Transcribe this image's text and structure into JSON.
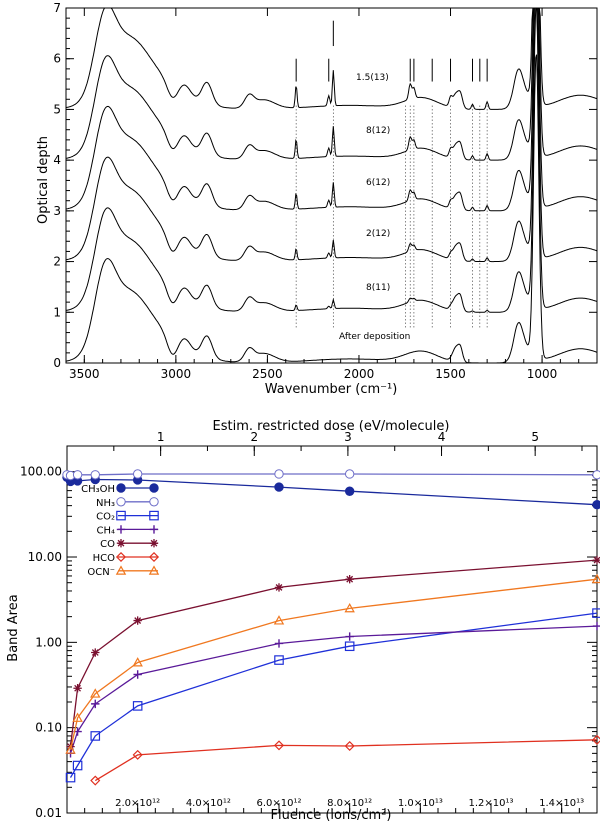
{
  "top_panel": {
    "xlabel": "Wavenumber (cm⁻¹)",
    "ylabel": "Optical depth",
    "xticks": [
      "3500",
      "3000",
      "2500",
      "2000",
      "1500",
      "1000"
    ],
    "yticks": [
      "0",
      "1",
      "2",
      "3",
      "4",
      "5",
      "6",
      "7"
    ],
    "spectra_labels": [
      "1.5(13)",
      "8(12)",
      "6(12)",
      "2(12)",
      "8(11)",
      "After deposition"
    ]
  },
  "bottom_panel": {
    "xlabel": "Fluence (ions/cm²)",
    "ylabel": "Band Area",
    "top_axis_label": "Estim. restricted dose (eV/molecule)",
    "top_ticks": [
      "1",
      "2",
      "3",
      "4",
      "5"
    ],
    "yticks": [
      "100.00",
      "10.00",
      "1.00",
      "0.10",
      "0.01"
    ],
    "xticks": [
      "2.0×10¹²",
      "4.0×10¹²",
      "6.0×10¹²",
      "8.0×10¹²",
      "1.0×10¹³",
      "1.2×10¹³",
      "1.4×10¹³"
    ],
    "legend": [
      "CH₃OH",
      "NH₃",
      "CO₂",
      "CH₄",
      "CO",
      "HCO",
      "OCN⁻"
    ]
  },
  "chart_data": [
    {
      "type": "line",
      "title": "",
      "xlabel": "Wavenumber (cm⁻¹)",
      "ylabel": "Optical depth",
      "xlim": [
        3600,
        700
      ],
      "ylim": [
        0,
        7
      ],
      "series_offsets": [
        {
          "name": "After deposition",
          "offset": 0.0
        },
        {
          "name": "8(11)",
          "offset": 1.0
        },
        {
          "name": "2(12)",
          "offset": 2.0
        },
        {
          "name": "6(12)",
          "offset": 3.0
        },
        {
          "name": "8(12)",
          "offset": 4.0
        },
        {
          "name": "1.5(13)",
          "offset": 5.0
        }
      ],
      "features_cm1": [
        3390,
        3260,
        3030,
        2950,
        2830,
        2600,
        2343,
        2140,
        1850,
        1720,
        1650,
        1470,
        1440,
        1130,
        1030,
        790
      ],
      "marked_lines_cm1": [
        2343,
        2165,
        2140,
        1720,
        1700,
        1600,
        1500,
        1380,
        1340,
        1300
      ],
      "dotted_lines_cm1": [
        2343,
        2140,
        1745,
        1720,
        1700,
        1600,
        1500,
        1380,
        1340,
        1300
      ]
    },
    {
      "type": "scatter",
      "title": "",
      "xlabel": "Fluence (ions/cm²)",
      "ylabel": "Band Area",
      "yscale": "log",
      "xlim": [
        0,
        15000000000000.0
      ],
      "ylim": [
        0.01,
        200
      ],
      "top_axis": {
        "label": "Estim. restricted dose (eV/molecule)",
        "ticks": [
          1,
          2,
          3,
          4,
          5
        ]
      },
      "x": [
        0,
        100000000000.0,
        300000000000.0,
        800000000000.0,
        2000000000000.0,
        6000000000000.0,
        8000000000000.0,
        15000000000000.0
      ],
      "series": [
        {
          "name": "CH₃OH",
          "color": "#1a2a9c",
          "marker": "filled-circle",
          "values": [
            86,
            77,
            78,
            81,
            80,
            66,
            59,
            41
          ]
        },
        {
          "name": "NH₃",
          "color": "#6e6ec8",
          "marker": "open-circle",
          "values": [
            92,
            90,
            92,
            92,
            94,
            94,
            94,
            92
          ]
        },
        {
          "name": "CO₂",
          "color": "#1f30d8",
          "marker": "open-square",
          "values": [
            null,
            0.026,
            0.036,
            0.08,
            0.18,
            0.62,
            0.9,
            2.2
          ]
        },
        {
          "name": "CH₄",
          "color": "#5a1a99",
          "marker": "plus",
          "values": [
            null,
            0.05,
            0.09,
            0.19,
            0.42,
            0.97,
            1.17,
            1.55
          ]
        },
        {
          "name": "CO",
          "color": "#7a1030",
          "marker": "asterisk",
          "values": [
            null,
            0.06,
            0.29,
            0.76,
            1.8,
            4.4,
            5.5,
            9.2
          ]
        },
        {
          "name": "HCO",
          "color": "#e03020",
          "marker": "open-diamond",
          "values": [
            null,
            null,
            null,
            0.024,
            0.048,
            0.062,
            0.061,
            0.072
          ]
        },
        {
          "name": "OCN⁻",
          "color": "#f07820",
          "marker": "open-triangle",
          "values": [
            null,
            0.055,
            0.13,
            0.25,
            0.58,
            1.8,
            2.5,
            5.5
          ]
        }
      ]
    }
  ]
}
